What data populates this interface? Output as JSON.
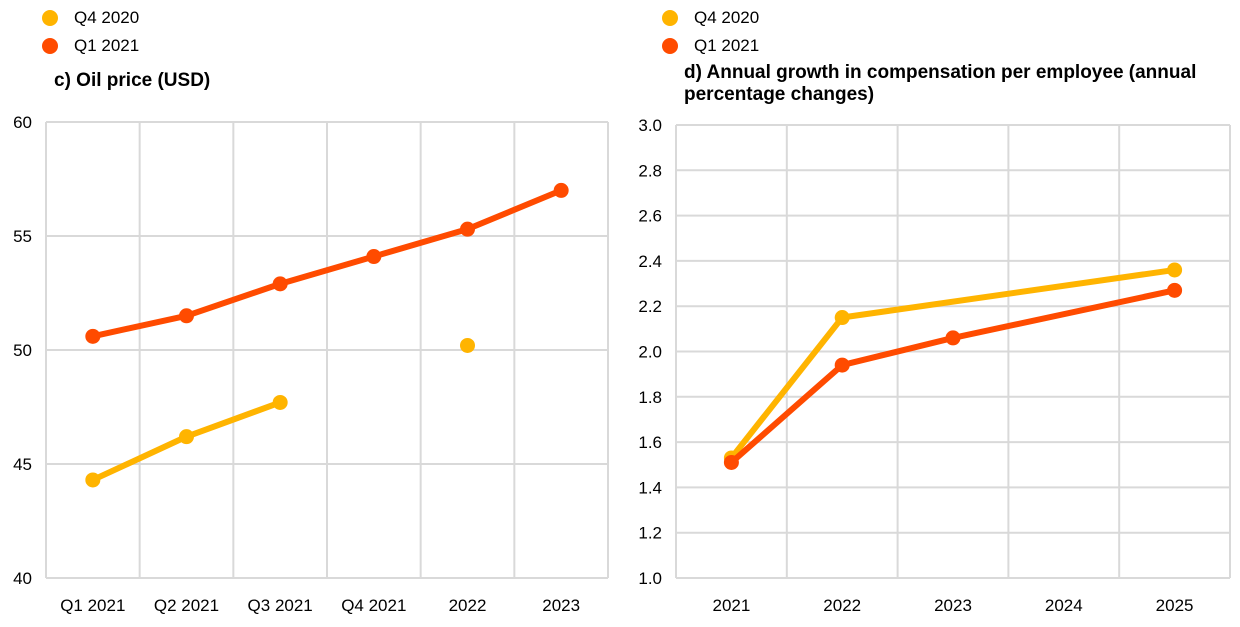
{
  "chart_data": [
    {
      "type": "line",
      "title": "c) Oil price (USD)",
      "categories": [
        "Q1 2021",
        "Q2 2021",
        "Q3 2021",
        "Q4 2021",
        "2022",
        "2023"
      ],
      "ylim": [
        40,
        60
      ],
      "yticks": [
        "40",
        "45",
        "50",
        "55",
        "60"
      ],
      "grid": true,
      "legend_position": "top-left",
      "series": [
        {
          "name": "Q4 2020",
          "color": "#FFB400",
          "values": [
            44.3,
            46.2,
            47.7,
            null,
            50.2,
            null
          ]
        },
        {
          "name": "Q1 2021",
          "color": "#FF4B00",
          "values": [
            50.6,
            51.5,
            52.9,
            54.1,
            55.3,
            57.0
          ]
        }
      ]
    },
    {
      "type": "line",
      "title": "d) Annual  growth in compensation per employee (annual percentage changes)",
      "categories": [
        "2021",
        "2022",
        "2023",
        "2024",
        "2025"
      ],
      "ylim": [
        1.0,
        3.0
      ],
      "yticks": [
        "1.0",
        "1.2",
        "1.4",
        "1.6",
        "1.8",
        "2.0",
        "2.2",
        "2.4",
        "2.6",
        "2.8",
        "3.0"
      ],
      "grid": true,
      "legend_position": "top-left",
      "series": [
        {
          "name": "Q4 2020",
          "color": "#FFB400",
          "values": [
            1.53,
            2.15,
            null,
            null,
            2.36
          ]
        },
        {
          "name": "Q1 2021",
          "color": "#FF4B00",
          "values": [
            1.51,
            1.94,
            2.06,
            null,
            2.27
          ]
        }
      ]
    }
  ]
}
